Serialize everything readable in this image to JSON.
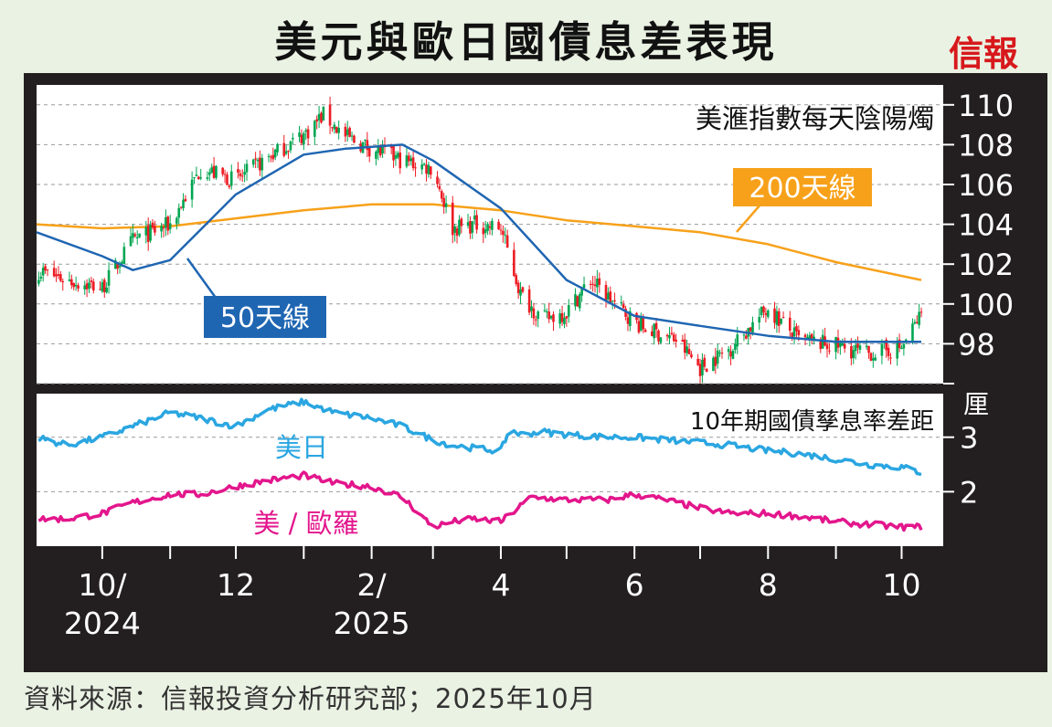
{
  "title": "美元與歐日國債息差表現",
  "logo": "信報",
  "source": "資料來源：信報投資分析研究部；2025年10月",
  "colors": {
    "frame": "#231f20",
    "candle_up": "#00a651",
    "candle_down": "#ed1c24",
    "ma50": "#1f66b2",
    "ma200": "#f7a11a",
    "us_jp": "#2aa6e1",
    "us_eu": "#e3168c"
  },
  "chart_data": [
    {
      "type": "candlestick",
      "title": "美滙指數每天陰陽燭",
      "ylim": [
        96,
        111
      ],
      "yticks": [
        98,
        100,
        102,
        104,
        106,
        108,
        110
      ],
      "labels": {
        "ma50": "50天線",
        "ma200": "200天線"
      },
      "series": [
        {
          "name": "close",
          "x": [
            "2024-09-01",
            "2024-09-15",
            "2024-10-01",
            "2024-10-15",
            "2024-11-01",
            "2024-11-15",
            "2024-12-01",
            "2024-12-15",
            "2025-01-01",
            "2025-01-10",
            "2025-01-20",
            "2025-02-01",
            "2025-02-15",
            "2025-03-01",
            "2025-03-10",
            "2025-03-20",
            "2025-04-01",
            "2025-04-10",
            "2025-04-20",
            "2025-05-01",
            "2025-05-12",
            "2025-05-25",
            "2025-06-05",
            "2025-06-20",
            "2025-07-01",
            "2025-07-15",
            "2025-08-01",
            "2025-08-15",
            "2025-09-01",
            "2025-09-15",
            "2025-10-01",
            "2025-10-10"
          ],
          "values": [
            101.7,
            101.2,
            100.8,
            103.2,
            104.0,
            106.8,
            106.2,
            107.3,
            108.5,
            109.5,
            108.4,
            107.8,
            107.2,
            106.8,
            103.8,
            104.0,
            103.8,
            100.5,
            99.2,
            99.6,
            101.2,
            99.8,
            98.8,
            98.2,
            96.8,
            97.8,
            99.8,
            98.2,
            97.9,
            97.5,
            97.8,
            99.5
          ]
        },
        {
          "name": "50天線",
          "x": [
            "2024-09-01",
            "2024-10-01",
            "2024-10-15",
            "2024-11-01",
            "2024-12-01",
            "2025-01-01",
            "2025-01-20",
            "2025-02-15",
            "2025-03-01",
            "2025-04-01",
            "2025-05-01",
            "2025-06-01",
            "2025-07-01",
            "2025-08-01",
            "2025-09-01",
            "2025-10-10"
          ],
          "values": [
            103.6,
            102.4,
            101.7,
            102.2,
            105.5,
            107.5,
            107.8,
            108.0,
            107.2,
            104.8,
            101.2,
            99.4,
            98.9,
            98.4,
            98.1,
            98.1
          ]
        },
        {
          "name": "200天線",
          "x": [
            "2024-09-01",
            "2024-10-01",
            "2024-11-01",
            "2024-12-01",
            "2025-01-01",
            "2025-02-01",
            "2025-03-01",
            "2025-04-01",
            "2025-05-01",
            "2025-06-01",
            "2025-07-01",
            "2025-08-01",
            "2025-09-01",
            "2025-10-10"
          ],
          "values": [
            104.0,
            103.8,
            103.9,
            104.3,
            104.7,
            105.0,
            105.0,
            104.7,
            104.2,
            103.9,
            103.6,
            103.0,
            102.1,
            101.2
          ]
        }
      ]
    },
    {
      "type": "line",
      "title": "10年期國債孳息率差距",
      "unit": "厘",
      "ylim": [
        1.0,
        3.8
      ],
      "yticks": [
        2,
        3
      ],
      "series": [
        {
          "name": "美日",
          "x": [
            "2024-09-01",
            "2024-09-15",
            "2024-10-01",
            "2024-10-15",
            "2024-11-01",
            "2024-11-15",
            "2024-12-01",
            "2024-12-15",
            "2025-01-01",
            "2025-01-15",
            "2025-02-01",
            "2025-02-15",
            "2025-03-01",
            "2025-03-10",
            "2025-03-20",
            "2025-04-01",
            "2025-04-05",
            "2025-04-10",
            "2025-04-20",
            "2025-05-01",
            "2025-05-20",
            "2025-06-01",
            "2025-06-15",
            "2025-07-01",
            "2025-07-15",
            "2025-08-01",
            "2025-08-15",
            "2025-09-01",
            "2025-09-15",
            "2025-10-01",
            "2025-10-10"
          ],
          "values": [
            3.0,
            2.85,
            3.0,
            3.2,
            3.45,
            3.35,
            3.2,
            3.5,
            3.65,
            3.45,
            3.35,
            3.2,
            2.95,
            2.85,
            2.8,
            2.75,
            3.15,
            3.05,
            3.1,
            3.05,
            3.0,
            3.0,
            2.95,
            2.9,
            2.85,
            2.75,
            2.7,
            2.6,
            2.5,
            2.45,
            2.35
          ]
        },
        {
          "name": "美 / 歐羅",
          "x": [
            "2024-09-01",
            "2024-09-15",
            "2024-10-01",
            "2024-10-15",
            "2024-11-01",
            "2024-11-15",
            "2024-12-01",
            "2024-12-15",
            "2025-01-01",
            "2025-01-15",
            "2025-02-01",
            "2025-02-15",
            "2025-03-01",
            "2025-03-10",
            "2025-03-20",
            "2025-04-01",
            "2025-04-15",
            "2025-05-01",
            "2025-05-20",
            "2025-06-01",
            "2025-06-15",
            "2025-07-01",
            "2025-07-15",
            "2025-08-01",
            "2025-08-15",
            "2025-09-01",
            "2025-09-15",
            "2025-10-01",
            "2025-10-10"
          ],
          "values": [
            1.5,
            1.5,
            1.6,
            1.8,
            1.95,
            1.95,
            2.1,
            2.2,
            2.3,
            2.15,
            2.1,
            1.9,
            1.35,
            1.45,
            1.5,
            1.45,
            1.9,
            1.85,
            1.85,
            1.95,
            1.85,
            1.7,
            1.6,
            1.6,
            1.55,
            1.45,
            1.4,
            1.35,
            1.35
          ]
        }
      ]
    }
  ],
  "xaxis": {
    "range": [
      "2024-09-01",
      "2025-10-20"
    ],
    "ticks": [
      {
        "date": "2024-10-01",
        "label": "10/",
        "sublabel": "2024"
      },
      {
        "date": "2024-11-01",
        "label": "",
        "sublabel": ""
      },
      {
        "date": "2024-12-01",
        "label": "12",
        "sublabel": ""
      },
      {
        "date": "2025-01-01",
        "label": "",
        "sublabel": ""
      },
      {
        "date": "2025-02-01",
        "label": "2/",
        "sublabel": "2025"
      },
      {
        "date": "2025-03-01",
        "label": "",
        "sublabel": ""
      },
      {
        "date": "2025-04-01",
        "label": "4",
        "sublabel": ""
      },
      {
        "date": "2025-05-01",
        "label": "",
        "sublabel": ""
      },
      {
        "date": "2025-06-01",
        "label": "6",
        "sublabel": ""
      },
      {
        "date": "2025-07-01",
        "label": "",
        "sublabel": ""
      },
      {
        "date": "2025-08-01",
        "label": "8",
        "sublabel": ""
      },
      {
        "date": "2025-09-01",
        "label": "",
        "sublabel": ""
      },
      {
        "date": "2025-10-01",
        "label": "10",
        "sublabel": ""
      }
    ]
  }
}
